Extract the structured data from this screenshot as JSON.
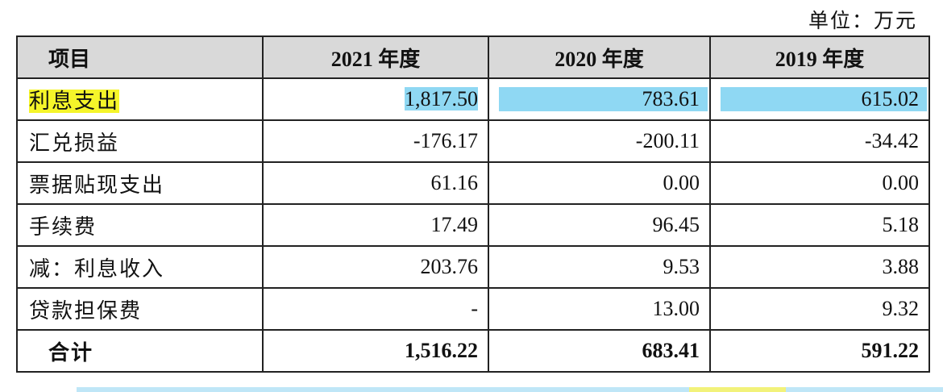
{
  "unit": "单位：万元",
  "table": {
    "header": [
      "项目",
      "2021 年度",
      "2020 年度",
      "2019 年度"
    ],
    "rows": [
      [
        "利息支出",
        "1,817.50",
        "783.61",
        "615.02"
      ],
      [
        "汇兑损益",
        "-176.17",
        "-200.11",
        "-34.42"
      ],
      [
        "票据贴现支出",
        "61.16",
        "0.00",
        "0.00"
      ],
      [
        "手续费",
        "17.49",
        "96.45",
        "5.18"
      ],
      [
        "减：利息收入",
        "203.76",
        "9.53",
        "3.88"
      ],
      [
        "贷款担保费",
        "-",
        "13.00",
        "9.32"
      ],
      [
        "合计",
        "1,516.22",
        "683.41",
        "591.22"
      ]
    ]
  }
}
